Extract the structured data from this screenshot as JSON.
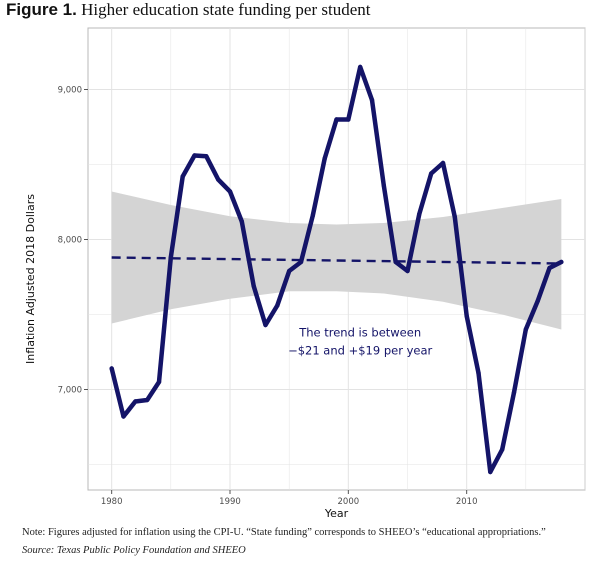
{
  "figure": {
    "number": "Figure 1.",
    "title": "Higher education state funding per student"
  },
  "note": "Note: Figures adjusted for inflation using the CPI-U. “State funding” corresponds to SHEEO’s “educational appropriations.”",
  "source": "Source: Texas Public Policy Foundation and SHEEO",
  "chart_data": {
    "type": "line",
    "xlabel": "Year",
    "ylabel": "Inflation Adjusted 2018 Dollars",
    "xlim": [
      1978,
      2020
    ],
    "ylim": [
      6330,
      9410
    ],
    "x_ticks": [
      1980,
      1990,
      2000,
      2010
    ],
    "x_tick_labels": [
      "1980",
      "1990",
      "2000",
      "2010"
    ],
    "y_ticks": [
      7000,
      8000,
      9000
    ],
    "y_tick_labels": [
      "7,000",
      "8,000",
      "9,000"
    ],
    "grid": true,
    "legend": "none",
    "series": [
      {
        "x": [
          1980,
          1981,
          1982,
          1983,
          1984,
          1985,
          1986,
          1987,
          1988,
          1989,
          1990,
          1991,
          1992,
          1993,
          1994,
          1995,
          1996,
          1997,
          1998,
          1999,
          2000,
          2001,
          2002,
          2003,
          2004,
          2005,
          2006,
          2007,
          2008,
          2009,
          2010,
          2011,
          2012,
          2013,
          2014,
          2015,
          2016,
          2017,
          2018
        ],
        "values": [
          7140,
          6820,
          6920,
          6930,
          7050,
          7880,
          8420,
          8560,
          8555,
          8400,
          8320,
          8120,
          7690,
          7430,
          7560,
          7790,
          7850,
          8160,
          8540,
          8800,
          8800,
          9150,
          8930,
          8360,
          7850,
          7790,
          8170,
          8440,
          8510,
          8150,
          7490,
          7110,
          6450,
          6600,
          6980,
          7400,
          7590,
          7810,
          7850
        ]
      }
    ],
    "trend": {
      "x": [
        1980,
        2018
      ],
      "values": [
        7880,
        7840
      ]
    },
    "confidence_band": {
      "x": [
        1980,
        1985,
        1990,
        1995,
        1999,
        2003,
        2008,
        2013,
        2018
      ],
      "upper": [
        8320,
        8230,
        8155,
        8110,
        8100,
        8110,
        8150,
        8210,
        8270
      ],
      "lower": [
        7440,
        7535,
        7605,
        7655,
        7655,
        7640,
        7585,
        7500,
        7400
      ]
    },
    "annotation": {
      "lines": [
        "The trend is between",
        "−$21 and +$19 per year"
      ],
      "x": 2001,
      "y": [
        7355,
        7235
      ]
    },
    "colors": {
      "line": "#141468",
      "band": "#d4d4d4",
      "grid": "#e3e3e3",
      "panel": "#ffffff"
    }
  }
}
